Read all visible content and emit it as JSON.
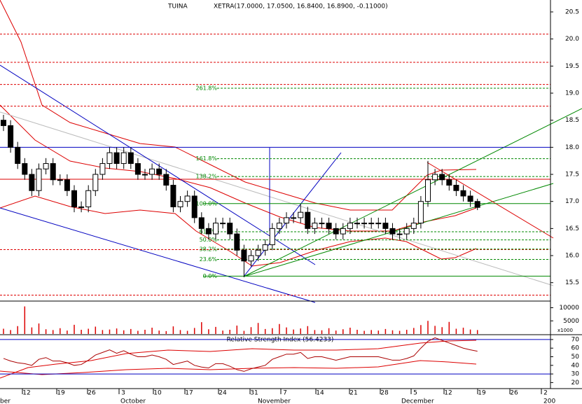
{
  "chart_data": {
    "type": "candlestick",
    "title": "TUINA",
    "subtitle": "XETRA(17.0000, 17.0500, 16.8400, 16.8900, -0.11000)",
    "open": [
      18.5,
      18.4,
      18.0,
      17.7,
      17.5,
      17.2,
      17.6,
      17.7,
      17.4,
      17.4,
      17.2,
      16.9,
      16.9,
      17.2,
      17.5,
      17.7,
      17.9,
      17.7,
      17.9,
      17.7,
      17.5,
      17.5,
      17.6,
      17.5,
      17.3,
      16.9,
      17.0,
      17.1,
      16.7,
      16.5,
      16.4,
      16.6,
      16.6,
      16.4,
      16.1,
      15.9,
      16.0,
      16.1,
      16.2,
      16.5,
      16.6,
      16.7,
      16.7,
      16.8,
      16.5,
      16.6,
      16.6,
      16.5,
      16.4,
      16.5,
      16.6,
      16.6,
      16.6,
      16.6,
      16.6,
      16.5,
      16.4,
      16.4,
      16.5,
      16.6,
      17.0,
      17.4,
      17.5,
      17.4,
      17.3,
      17.2,
      17.1,
      17.0
    ],
    "high": [
      18.6,
      18.5,
      18.1,
      17.8,
      17.6,
      17.7,
      17.8,
      17.8,
      17.5,
      17.5,
      17.3,
      17.0,
      17.3,
      17.6,
      17.8,
      18.0,
      18.0,
      18.0,
      18.0,
      17.8,
      17.6,
      17.7,
      17.7,
      17.6,
      17.4,
      17.1,
      17.2,
      17.2,
      16.8,
      16.6,
      16.7,
      16.7,
      16.7,
      16.5,
      16.2,
      16.1,
      16.2,
      16.3,
      16.6,
      16.7,
      16.8,
      16.8,
      16.95,
      16.9,
      16.7,
      16.7,
      16.7,
      16.6,
      16.6,
      16.7,
      16.7,
      16.7,
      16.7,
      16.7,
      16.7,
      16.6,
      16.5,
      16.6,
      16.7,
      17.1,
      17.75,
      17.6,
      17.6,
      17.5,
      17.4,
      17.3,
      17.2,
      17.05
    ],
    "low": [
      18.3,
      17.9,
      17.6,
      17.4,
      17.1,
      17.1,
      17.5,
      17.3,
      17.3,
      17.1,
      16.8,
      16.8,
      16.8,
      17.1,
      17.4,
      17.6,
      17.6,
      17.6,
      17.6,
      17.4,
      17.4,
      17.4,
      17.4,
      17.2,
      16.8,
      16.8,
      16.9,
      16.6,
      16.4,
      16.3,
      16.3,
      16.5,
      16.3,
      16.0,
      15.6,
      15.8,
      15.9,
      16.0,
      16.1,
      16.4,
      16.5,
      16.6,
      16.6,
      16.4,
      16.4,
      16.5,
      16.4,
      16.3,
      16.3,
      16.4,
      16.5,
      16.5,
      16.5,
      16.5,
      16.4,
      16.3,
      16.3,
      16.3,
      16.4,
      16.5,
      16.9,
      17.3,
      17.3,
      17.2,
      17.1,
      17.0,
      16.9,
      16.84
    ],
    "close": [
      18.4,
      18.0,
      17.7,
      17.5,
      17.2,
      17.6,
      17.7,
      17.4,
      17.4,
      17.2,
      16.9,
      16.9,
      17.2,
      17.5,
      17.7,
      17.9,
      17.7,
      17.9,
      17.7,
      17.5,
      17.5,
      17.6,
      17.5,
      17.3,
      16.9,
      17.0,
      17.1,
      16.7,
      16.5,
      16.4,
      16.6,
      16.6,
      16.4,
      16.1,
      15.9,
      16.0,
      16.1,
      16.2,
      16.5,
      16.6,
      16.7,
      16.7,
      16.8,
      16.5,
      16.6,
      16.6,
      16.5,
      16.4,
      16.5,
      16.6,
      16.6,
      16.6,
      16.6,
      16.6,
      16.5,
      16.4,
      16.4,
      16.5,
      16.6,
      17.0,
      17.4,
      17.5,
      17.4,
      17.3,
      17.2,
      17.1,
      17.0,
      16.89
    ],
    "ylim": [
      15.16,
      20.72
    ],
    "yticks": [
      20.5,
      {
        "value": 20,
        "label": "20.0"
      },
      19.5,
      {
        "value": 19,
        "label": "19.0"
      },
      18.5,
      {
        "value": 18,
        "label": "18.0"
      },
      17.5,
      {
        "value": 17,
        "label": "17.0"
      },
      16.5,
      {
        "value": 16,
        "label": "16.0"
      },
      15.5
    ],
    "fib_levels": [
      {
        "label": "261.8%",
        "value": 19.09
      },
      {
        "label": "161.8%",
        "value": 17.79
      },
      {
        "label": "138.2%",
        "value": 17.46
      },
      {
        "label": "100.0%",
        "value": 16.96
      },
      {
        "label": "61.8%",
        "value": 16.44
      },
      {
        "label": "50.0%",
        "value": 16.29
      },
      {
        "label": "38.2%",
        "value": 16.12
      },
      {
        "label": "23.6%",
        "value": 15.93
      },
      {
        "label": "0.0%",
        "value": 15.62
      }
    ],
    "red_dashed_levels": [
      20.09,
      19.57,
      19.16,
      18.76,
      16.11,
      15.27
    ],
    "red_solid_level": 17.41,
    "blue_level": 18.0,
    "x_labels": [
      "12",
      "19",
      "26",
      "3",
      "10",
      "17",
      "24",
      "31",
      "7",
      "14",
      "21",
      "28",
      "5",
      "12",
      "19",
      "26",
      "2"
    ],
    "month_labels": [
      "ber",
      "October",
      "November",
      "December",
      "200"
    ],
    "volume": {
      "values": [
        2000,
        1500,
        3000,
        10500,
        2500,
        4000,
        1800,
        1500,
        2200,
        1300,
        3500,
        1600,
        2000,
        2800,
        1500,
        1700,
        2100,
        1400,
        1900,
        1200,
        1600,
        2400,
        1300,
        1100,
        2900,
        1500,
        1200,
        2300,
        4500,
        1800,
        2700,
        1300,
        1600,
        3200,
        1200,
        2600,
        4200,
        1900,
        2200,
        3800,
        2500,
        1700,
        2100,
        3000,
        1500,
        1400,
        2200,
        1300,
        1800,
        2400,
        1600,
        1200,
        1500,
        1300,
        1900,
        1400,
        1200,
        1600,
        2300,
        3400,
        5000,
        3100,
        2600,
        4600,
        2000,
        2400,
        1700,
        1500
      ],
      "ylim": [
        0,
        12000
      ],
      "yticks": [
        10000,
        5000
      ],
      "unit_label": "x1000"
    },
    "rsi": {
      "title": "Relative Strength Index (56.4233)",
      "values": [
        48,
        45,
        43,
        42,
        40,
        47,
        49,
        45,
        45,
        43,
        40,
        41,
        46,
        52,
        55,
        58,
        54,
        57,
        53,
        50,
        50,
        52,
        50,
        47,
        41,
        43,
        45,
        40,
        38,
        37,
        42,
        42,
        39,
        35,
        33,
        36,
        38,
        40,
        47,
        50,
        53,
        53,
        55,
        48,
        50,
        50,
        48,
        46,
        48,
        50,
        50,
        50,
        50,
        50,
        48,
        46,
        46,
        48,
        51,
        60,
        68,
        72,
        69,
        66,
        63,
        60,
        58,
        56.42
      ],
      "ylim": [
        13,
        74
      ],
      "yticks": [
        70,
        60,
        50,
        40,
        30,
        20
      ],
      "levels": [
        70,
        30
      ]
    }
  }
}
